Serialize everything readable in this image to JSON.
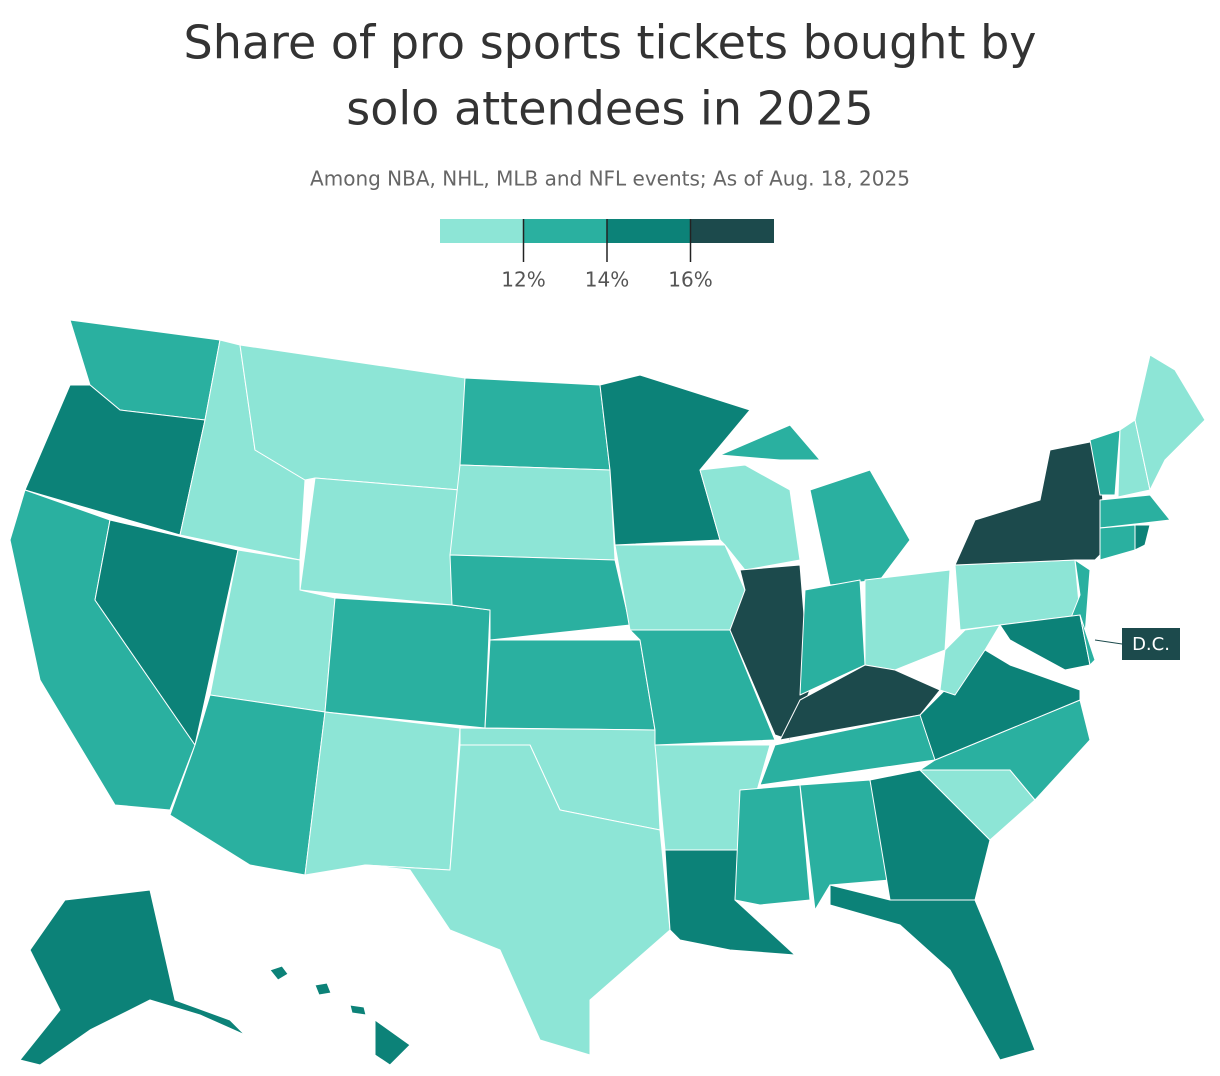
{
  "title": "Share of pro sports tickets bought by solo attendees in 2025",
  "subtitle": "Among NBA, NHL, MLB and NFL events; As of Aug. 18, 2025",
  "legend": {
    "colors": [
      "#8de5d6",
      "#2ab0a0",
      "#0c8278",
      "#1c4a4c"
    ],
    "lim": [
      10,
      18
    ],
    "ticks": [
      {
        "value": 12,
        "label": "12%"
      },
      {
        "value": 14,
        "label": "14%"
      },
      {
        "value": 16,
        "label": "16%"
      }
    ]
  },
  "regions": [
    "#2ab0a0",
    "#0c8278",
    "#2ab0a0",
    "#0c8278",
    "#8de5d6",
    "#8de5d6",
    "#8de5d6",
    "#8de5d6",
    "#2ab0a0",
    "#2ab0a0",
    "#8de5d6",
    "#2ab0a0",
    "#8de5d6",
    "#2ab0a0",
    "#2ab0a0",
    "#8de5d6",
    "#8de5d6",
    "#0c8278",
    "#8de5d6",
    "#2ab0a0",
    "#8de5d6",
    "#0c8278",
    "#8de5d6",
    "#1c4a4c",
    "#2ab0a0",
    "#2ab0a0",
    "#2ab0a0",
    "#8de5d6",
    "#1c4a4c",
    "#2ab0a0",
    "#2ab0a0",
    "#2ab0a0",
    "#0c8278",
    "#0c8278",
    "#8de5d6",
    "#2ab0a0",
    "#0c8278",
    "#8de5d6",
    "#8de5d6",
    "#1c4a4c",
    "#2ab0a0",
    "#0c8278",
    "#2ab0a0",
    "#2ab0a0",
    "#8de5d6",
    "#8de5d6",
    "#2ab0a0",
    "#2ab0a0",
    "#0c8278",
    "#0c8278",
    "#0c8278"
  ],
  "callout": {
    "label": "D.C.",
    "color": "#1c4a4c"
  }
}
